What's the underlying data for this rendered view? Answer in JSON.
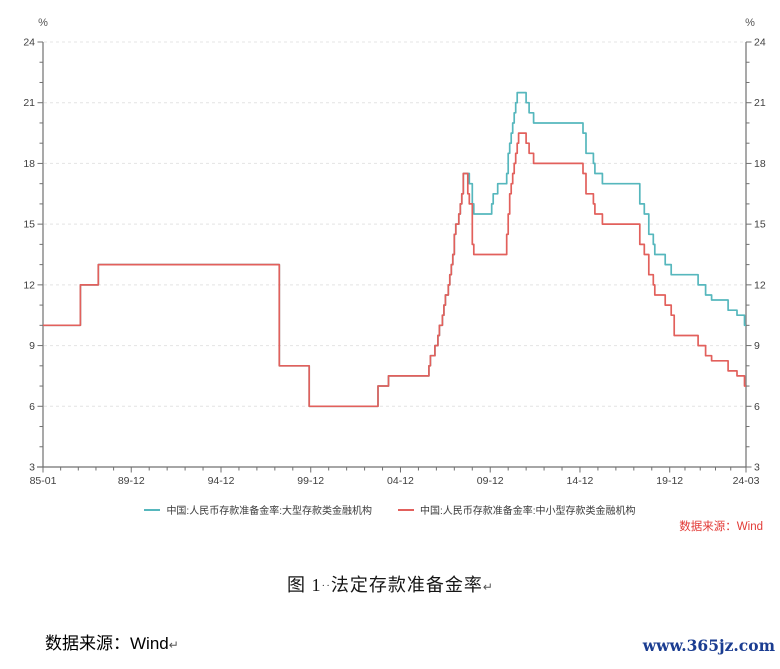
{
  "chart_data": {
    "type": "line",
    "title": "图 1 法定存款准备金率",
    "unit_left": "%",
    "unit_right": "%",
    "ylim": [
      3,
      24
    ],
    "y_major_step": 3,
    "y_minor_step": 1,
    "grid": "horizontal dashed gridlines at multiples of 3, both y axes mirrored",
    "legend_position": "bottom center",
    "x_range": [
      "1985-01",
      "2024-03"
    ],
    "x_ticks": [
      "85-01",
      "89-12",
      "94-12",
      "99-12",
      "04-12",
      "09-12",
      "14-12",
      "19-12",
      "24-03"
    ],
    "x_tick_dates": [
      "1985-01",
      "1989-12",
      "1994-12",
      "1999-12",
      "2004-12",
      "2009-12",
      "2014-12",
      "2019-12",
      "2024-03"
    ],
    "series": [
      {
        "name": "中国:人民币存款准备金率:大型存款类金融机构",
        "color": "#56b7bd",
        "points": [
          [
            "1985-01",
            10
          ],
          [
            "1987-02",
            12
          ],
          [
            "1988-02",
            13
          ],
          [
            "1998-03",
            8
          ],
          [
            "1999-11",
            6
          ],
          [
            "2003-09",
            7
          ],
          [
            "2004-04",
            7.5
          ],
          [
            "2006-07",
            8
          ],
          [
            "2006-08",
            8.5
          ],
          [
            "2006-11",
            9
          ],
          [
            "2007-01",
            9.5
          ],
          [
            "2007-02",
            10
          ],
          [
            "2007-04",
            10.5
          ],
          [
            "2007-05",
            11
          ],
          [
            "2007-06",
            11.5
          ],
          [
            "2007-08",
            12
          ],
          [
            "2007-09",
            12.5
          ],
          [
            "2007-10",
            13
          ],
          [
            "2007-11",
            13.5
          ],
          [
            "2007-12",
            14.5
          ],
          [
            "2008-01",
            15
          ],
          [
            "2008-03",
            15.5
          ],
          [
            "2008-04",
            16
          ],
          [
            "2008-05",
            16.5
          ],
          [
            "2008-06",
            17.5
          ],
          [
            "2008-10",
            17
          ],
          [
            "2008-12",
            16
          ],
          [
            "2009-01",
            15.5
          ],
          [
            "2010-01",
            16
          ],
          [
            "2010-02",
            16.5
          ],
          [
            "2010-05",
            17
          ],
          [
            "2010-11",
            17.5
          ],
          [
            "2010-12",
            18.5
          ],
          [
            "2011-01",
            19
          ],
          [
            "2011-02",
            19.5
          ],
          [
            "2011-03",
            20
          ],
          [
            "2011-04",
            20.5
          ],
          [
            "2011-05",
            21
          ],
          [
            "2011-06",
            21.5
          ],
          [
            "2011-12",
            21
          ],
          [
            "2012-02",
            20.5
          ],
          [
            "2012-05",
            20
          ],
          [
            "2015-02",
            19.5
          ],
          [
            "2015-04",
            18.5
          ],
          [
            "2015-09",
            18
          ],
          [
            "2015-10",
            17.5
          ],
          [
            "2016-03",
            17
          ],
          [
            "2018-04",
            16
          ],
          [
            "2018-07",
            15.5
          ],
          [
            "2018-10",
            14.5
          ],
          [
            "2019-01",
            14
          ],
          [
            "2019-02",
            13.5
          ],
          [
            "2019-09",
            13
          ],
          [
            "2020-01",
            12.5
          ],
          [
            "2021-07",
            12
          ],
          [
            "2021-12",
            11.5
          ],
          [
            "2022-04",
            11.25
          ],
          [
            "2023-03",
            10.75
          ],
          [
            "2023-09",
            10.5
          ],
          [
            "2024-02",
            10
          ]
        ]
      },
      {
        "name": "中国:人民币存款准备金率:中小型存款类金融机构",
        "color": "#e2605c",
        "points": [
          [
            "1985-01",
            10
          ],
          [
            "1987-02",
            12
          ],
          [
            "1988-02",
            13
          ],
          [
            "1998-03",
            8
          ],
          [
            "1999-11",
            6
          ],
          [
            "2003-09",
            7
          ],
          [
            "2004-04",
            7.5
          ],
          [
            "2006-07",
            8
          ],
          [
            "2006-08",
            8.5
          ],
          [
            "2006-11",
            9
          ],
          [
            "2007-01",
            9.5
          ],
          [
            "2007-02",
            10
          ],
          [
            "2007-04",
            10.5
          ],
          [
            "2007-05",
            11
          ],
          [
            "2007-06",
            11.5
          ],
          [
            "2007-08",
            12
          ],
          [
            "2007-09",
            12.5
          ],
          [
            "2007-10",
            13
          ],
          [
            "2007-11",
            13.5
          ],
          [
            "2007-12",
            14.5
          ],
          [
            "2008-01",
            15
          ],
          [
            "2008-03",
            15.5
          ],
          [
            "2008-04",
            16
          ],
          [
            "2008-05",
            16.5
          ],
          [
            "2008-06",
            17.5
          ],
          [
            "2008-09",
            16.5
          ],
          [
            "2008-10",
            16
          ],
          [
            "2008-12",
            14
          ],
          [
            "2009-01",
            13.5
          ],
          [
            "2010-11",
            14.5
          ],
          [
            "2010-12",
            15.5
          ],
          [
            "2011-01",
            16.5
          ],
          [
            "2011-02",
            17
          ],
          [
            "2011-03",
            17.5
          ],
          [
            "2011-04",
            18
          ],
          [
            "2011-05",
            18.5
          ],
          [
            "2011-06",
            19
          ],
          [
            "2011-07",
            19.5
          ],
          [
            "2011-12",
            19
          ],
          [
            "2012-02",
            18.5
          ],
          [
            "2012-05",
            18
          ],
          [
            "2015-02",
            17.5
          ],
          [
            "2015-04",
            16.5
          ],
          [
            "2015-09",
            16
          ],
          [
            "2015-10",
            15.5
          ],
          [
            "2016-03",
            15
          ],
          [
            "2018-04",
            14
          ],
          [
            "2018-07",
            13.5
          ],
          [
            "2018-10",
            12.5
          ],
          [
            "2019-01",
            12
          ],
          [
            "2019-02",
            11.5
          ],
          [
            "2019-09",
            11
          ],
          [
            "2020-01",
            10.5
          ],
          [
            "2020-03",
            9.5
          ],
          [
            "2021-07",
            9
          ],
          [
            "2021-12",
            8.5
          ],
          [
            "2022-04",
            8.25
          ],
          [
            "2023-03",
            7.75
          ],
          [
            "2023-09",
            7.5
          ],
          [
            "2024-02",
            7
          ]
        ]
      }
    ]
  },
  "source_note": {
    "text": "数据来源：Wind"
  },
  "caption": {
    "figure_label": "图 1",
    "space_marks": "··",
    "text": "法定存款准备金率",
    "paragraph_mark": "↵"
  },
  "footer": {
    "source_label": "数据来源：Wind",
    "paragraph_mark": "↵",
    "website": "www.365jz.com"
  }
}
